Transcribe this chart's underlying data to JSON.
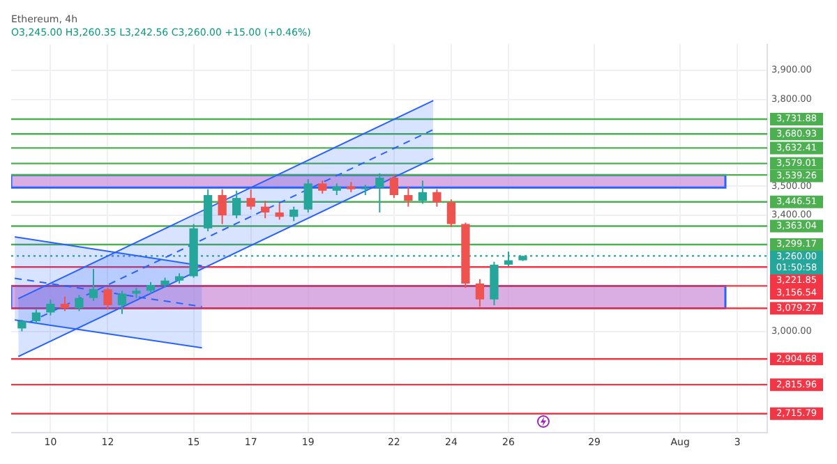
{
  "chart_data": {
    "type": "candlestick",
    "title": "Ethereum, 4h",
    "subtitle": "O3,245.00 H3,260.35 L3,242.56 C3,260.00 +15.00 (+0.46%)",
    "x": [
      "--07-09T00:00",
      "--07-09T12:00",
      "--07-10T00:00",
      "--07-10T12:00",
      "--07-11T00:00",
      "--07-11T12:00",
      "--07-12T00:00",
      "--07-12T12:00",
      "--07-13T00:00",
      "--07-13T12:00",
      "--07-14T00:00",
      "--07-14T12:00",
      "--07-15T00:00",
      "--07-15T12:00",
      "--07-16T00:00",
      "--07-16T12:00",
      "--07-17T00:00",
      "--07-17T12:00",
      "--07-18T00:00",
      "--07-18T12:00",
      "--07-19T00:00",
      "--07-19T12:00",
      "--07-20T00:00",
      "--07-20T12:00",
      "--07-21T00:00",
      "--07-21T12:00",
      "--07-22T00:00",
      "--07-22T12:00",
      "--07-23T00:00",
      "--07-23T12:00",
      "--07-24T00:00",
      "--07-24T12:00",
      "--07-25T00:00",
      "--07-25T12:00",
      "--07-26T00:00",
      "--07-26T12:00"
    ],
    "ohlc": [
      [
        3010,
        3040,
        3000,
        3035
      ],
      [
        3035,
        3075,
        3025,
        3065
      ],
      [
        3065,
        3110,
        3055,
        3095
      ],
      [
        3095,
        3120,
        3070,
        3080
      ],
      [
        3080,
        3125,
        3070,
        3115
      ],
      [
        3115,
        3215,
        3105,
        3145
      ],
      [
        3145,
        3150,
        3075,
        3090
      ],
      [
        3090,
        3140,
        3060,
        3130
      ],
      [
        3130,
        3150,
        3115,
        3140
      ],
      [
        3140,
        3170,
        3130,
        3160
      ],
      [
        3160,
        3185,
        3150,
        3175
      ],
      [
        3175,
        3200,
        3165,
        3190
      ],
      [
        3190,
        3370,
        3185,
        3355
      ],
      [
        3355,
        3490,
        3345,
        3470
      ],
      [
        3470,
        3490,
        3370,
        3400
      ],
      [
        3400,
        3485,
        3390,
        3460
      ],
      [
        3460,
        3490,
        3420,
        3430
      ],
      [
        3430,
        3450,
        3390,
        3410
      ],
      [
        3410,
        3440,
        3385,
        3395
      ],
      [
        3395,
        3430,
        3380,
        3420
      ],
      [
        3420,
        3525,
        3410,
        3510
      ],
      [
        3510,
        3520,
        3475,
        3485
      ],
      [
        3485,
        3510,
        3470,
        3500
      ],
      [
        3500,
        3515,
        3480,
        3490
      ],
      [
        3490,
        3505,
        3470,
        3495
      ],
      [
        3495,
        3545,
        3410,
        3530
      ],
      [
        3530,
        3540,
        3460,
        3470
      ],
      [
        3470,
        3500,
        3430,
        3450
      ],
      [
        3450,
        3520,
        3440,
        3480
      ],
      [
        3480,
        3490,
        3430,
        3445
      ],
      [
        3445,
        3455,
        3360,
        3370
      ],
      [
        3370,
        3375,
        3150,
        3165
      ],
      [
        3165,
        3180,
        3085,
        3110
      ],
      [
        3110,
        3240,
        3090,
        3230
      ],
      [
        3230,
        3275,
        3225,
        3245
      ],
      [
        3245,
        3260.35,
        3242.56,
        3260
      ]
    ],
    "colors": [
      "#26a69a",
      "#26a69a",
      "#26a69a",
      "#ef5350",
      "#26a69a",
      "#26a69a",
      "#ef5350",
      "#26a69a",
      "#26a69a",
      "#26a69a",
      "#26a69a",
      "#26a69a",
      "#26a69a",
      "#26a69a",
      "#ef5350",
      "#26a69a",
      "#ef5350",
      "#ef5350",
      "#ef5350",
      "#26a69a",
      "#26a69a",
      "#ef5350",
      "#26a69a",
      "#ef5350",
      "#26a69a",
      "#26a69a",
      "#ef5350",
      "#ef5350",
      "#26a69a",
      "#ef5350",
      "#ef5350",
      "#ef5350",
      "#ef5350",
      "#26a69a",
      "#26a69a",
      "#26a69a"
    ],
    "series": [
      {
        "type": "line",
        "color": "#2962ff",
        "line_style": "dashed",
        "x": [
          "--07-08T21:00",
          "--07-23T09:00"
        ],
        "values": [
          3013,
          3696
        ],
        "lower": [
          2913,
          3596
        ],
        "upper": [
          3113,
          3796
        ]
      },
      {
        "type": "line",
        "color": "#2962ff",
        "line_style": "dashed",
        "x": [
          "--07-08T18:00",
          "--07-15T07:00"
        ],
        "values": [
          3183,
          3085
        ],
        "lower": [
          3039,
          2943
        ],
        "upper": [
          3326,
          3226
        ]
      },
      {
        "type": "line",
        "color": "#2962ff",
        "x": [
          "--07-08T21:00",
          "--07-23T09:00"
        ],
        "values": [
          2913,
          3596
        ]
      },
      {
        "type": "line",
        "color": "#2962ff",
        "x": [
          "--07-08T21:00",
          "--07-23T09:00"
        ],
        "values": [
          3113,
          3796
        ]
      },
      {
        "type": "line",
        "color": "#2962ff",
        "x": [
          "--07-08T18:00",
          "--07-15T07:00"
        ],
        "values": [
          3039,
          2943
        ]
      },
      {
        "type": "line",
        "color": "#2962ff",
        "x": [
          "--07-08T18:00",
          "--07-15T07:00"
        ],
        "values": [
          3326,
          3226
        ]
      }
    ],
    "xlim": [
      "--07-08T15:00",
      "--08-04T01:00"
    ],
    "xticks": [
      {
        "value": "--07-10",
        "label": "10"
      },
      {
        "value": "--07-12",
        "label": "12"
      },
      {
        "value": "--07-15",
        "label": "15"
      },
      {
        "value": "--07-17",
        "label": "17"
      },
      {
        "value": "--07-19",
        "label": "19"
      },
      {
        "value": "--07-22",
        "label": "22"
      },
      {
        "value": "--07-24",
        "label": "24"
      },
      {
        "value": "--07-26",
        "label": "26"
      },
      {
        "value": "--07-29",
        "label": "29"
      },
      {
        "value": "--08-01",
        "label": "Aug"
      },
      {
        "value": "--08-03",
        "label": "3"
      }
    ],
    "ylim": [
      2650,
      3990
    ],
    "yticks": [
      {
        "value": 3000,
        "label": "3,000.00"
      },
      {
        "value": 3400,
        "label": "3,400.00"
      },
      {
        "value": 3500,
        "label": "3,500.00"
      },
      {
        "value": 3800,
        "label": "3,800.00"
      },
      {
        "value": 3900,
        "label": "3,900.00"
      }
    ],
    "bands": [
      {
        "axis": "y",
        "from": 3496,
        "to": 3539.26,
        "color": "#ce93d8"
      },
      {
        "axis": "y",
        "from": 3079.27,
        "to": 3156.54,
        "color": "#ce93d8"
      }
    ],
    "ref_lines": [
      {
        "axis": "y",
        "value": 3731.88,
        "label": "3,731.88",
        "color": "#4caf50"
      },
      {
        "axis": "y",
        "value": 3680.93,
        "label": "3,680.93",
        "color": "#4caf50"
      },
      {
        "axis": "y",
        "value": 3632.41,
        "label": "3,632.41",
        "color": "#4caf50"
      },
      {
        "axis": "y",
        "value": 3579.01,
        "label": "3,579.01",
        "color": "#4caf50"
      },
      {
        "axis": "y",
        "value": 3539.26,
        "label": "3,539.26",
        "color": "#4caf50"
      },
      {
        "axis": "y",
        "value": 3446.51,
        "label": "3,446.51",
        "color": "#4caf50"
      },
      {
        "axis": "y",
        "value": 3363.04,
        "label": "3,363.04",
        "color": "#4caf50"
      },
      {
        "axis": "y",
        "value": 3299.17,
        "label": "3,299.17",
        "color": "#4caf50"
      },
      {
        "axis": "y",
        "value": 3260,
        "label": "3,260.00\n01:50:58",
        "color": "#26a69a",
        "line_style": "dotted"
      },
      {
        "axis": "y",
        "value": 3221.85,
        "label": "3,221.85",
        "color": "#f23645"
      },
      {
        "axis": "y",
        "value": 3156.54,
        "label": "3,156.54",
        "color": "#f23645"
      },
      {
        "axis": "y",
        "value": 3079.27,
        "label": "3,079.27",
        "color": "#f23645"
      },
      {
        "axis": "y",
        "value": 2904.68,
        "label": "2,904.68",
        "color": "#f23645"
      },
      {
        "axis": "y",
        "value": 2815.96,
        "label": "2,815.96",
        "color": "#f23645"
      },
      {
        "axis": "y",
        "value": 2715.79,
        "label": "2,715.79",
        "color": "#f23645"
      }
    ],
    "grid": true,
    "legend": false,
    "marker": "none"
  }
}
